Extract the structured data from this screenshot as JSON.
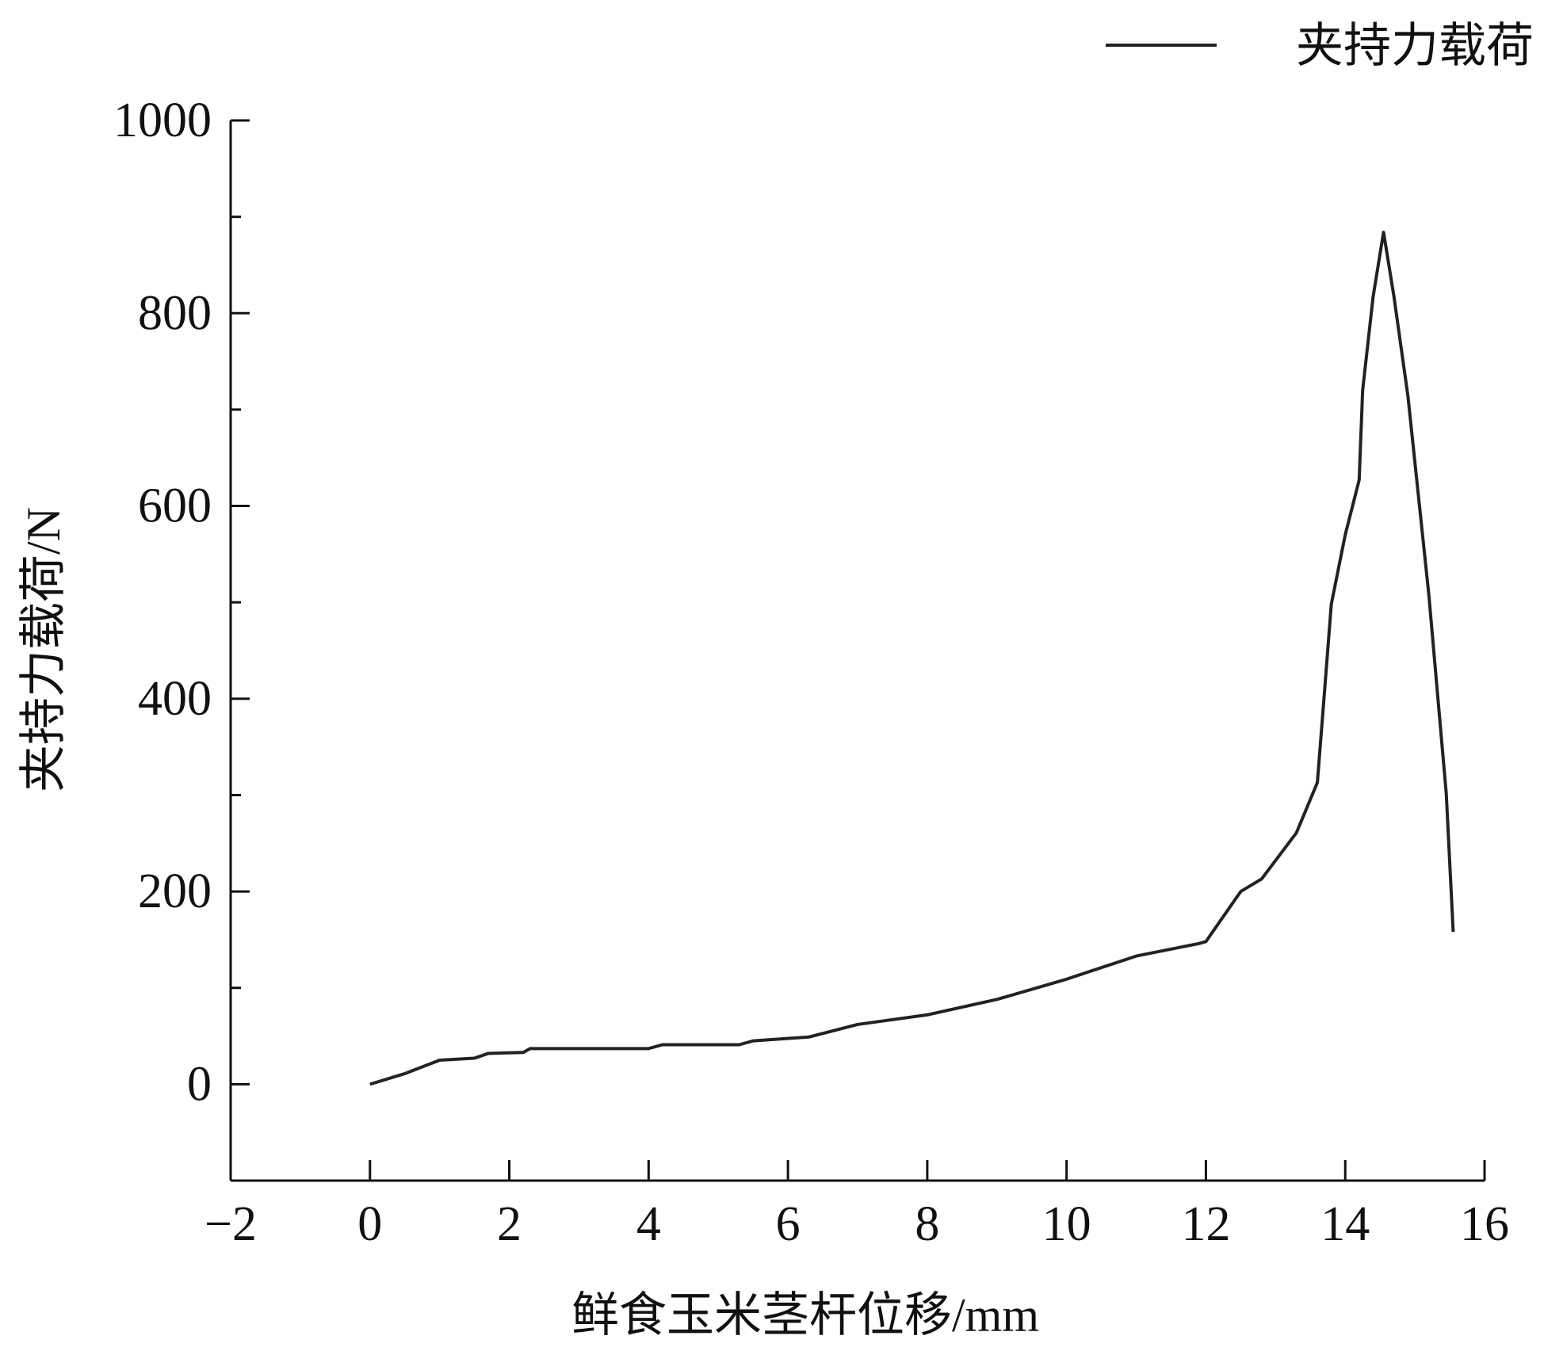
{
  "chart_data": {
    "type": "line",
    "x_label": "鲜食玉米茎杆位移/mm",
    "y_label": "夹持力载荷/N",
    "legend": "top-right",
    "xlim": [
      -2,
      16
    ],
    "ylim": [
      -100,
      1000
    ],
    "xticks": [
      {
        "value": -2,
        "label": "−2"
      },
      0,
      2,
      4,
      6,
      8,
      10,
      12,
      14,
      16
    ],
    "yticks": [
      0,
      200,
      400,
      600,
      800,
      1000
    ],
    "yminorticks": [
      -100,
      100,
      300,
      500,
      700,
      900
    ],
    "series": [
      {
        "name": "夹持力载荷",
        "color": "#222222",
        "x": [
          0,
          0.5,
          1,
          1.5,
          1.7,
          2.2,
          2.3,
          4,
          4.2,
          5.3,
          5.5,
          6.3,
          7,
          8,
          9,
          10,
          11,
          11.9,
          12,
          12.5,
          12.8,
          13.3,
          13.6,
          13.7,
          13.8,
          14,
          14.2,
          14.25,
          14.4,
          14.55,
          14.7,
          14.9,
          15.2,
          15.45,
          15.55
        ],
        "values": [
          0,
          11,
          25,
          27,
          32,
          33,
          37,
          37,
          41,
          41,
          45,
          49,
          62,
          72,
          88,
          109,
          133,
          146,
          148,
          200,
          213,
          261,
          313,
          405,
          498,
          570,
          627,
          720,
          817,
          884,
          817,
          714,
          508,
          302,
          158
        ]
      }
    ]
  }
}
